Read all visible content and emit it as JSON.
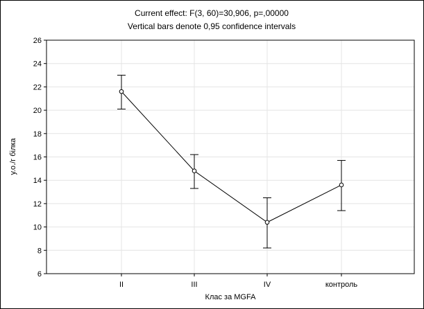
{
  "chart_data": {
    "type": "line",
    "title": "Current effect: F(3, 60)=30,906, p=,00000",
    "subtitle": "Vertical bars denote 0,95 confidence intervals",
    "xlabel": "Клас за MGFA",
    "ylabel": "у.о./г білка",
    "categories": [
      "II",
      "III",
      "IV",
      "контроль"
    ],
    "series": [
      {
        "values": [
          21.6,
          14.8,
          10.4,
          13.6
        ],
        "ci_lower": [
          20.1,
          13.3,
          8.2,
          11.4
        ],
        "ci_upper": [
          23.0,
          16.2,
          12.5,
          15.7
        ]
      }
    ],
    "ylim": [
      6,
      26
    ],
    "yticks": [
      6,
      8,
      10,
      12,
      14,
      16,
      18,
      20,
      22,
      24,
      26
    ],
    "grid": true,
    "legend": "none"
  }
}
